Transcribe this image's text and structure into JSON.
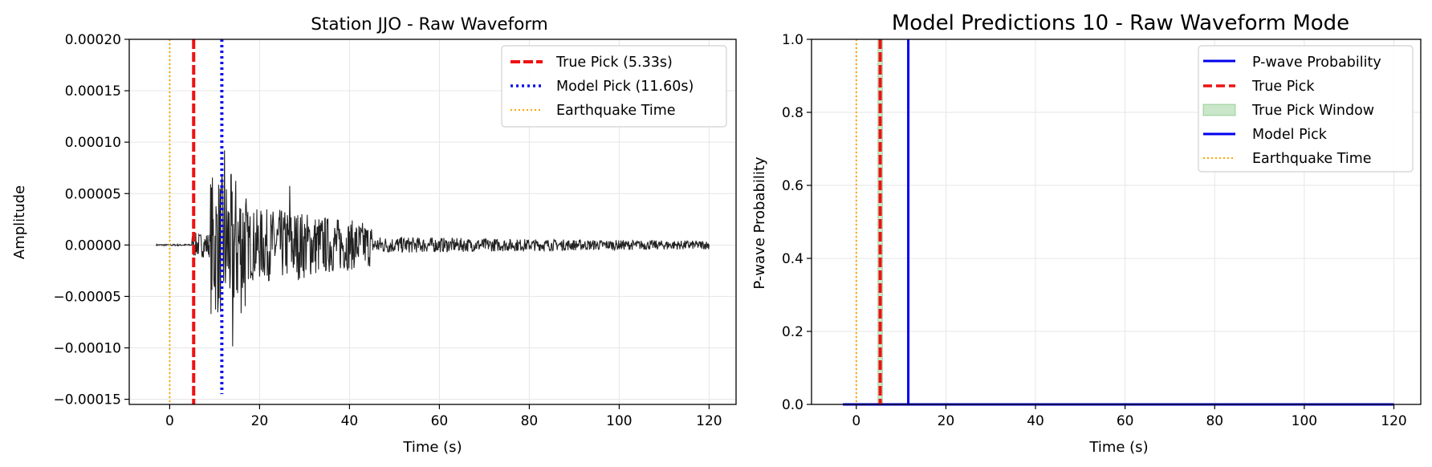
{
  "chart_data": [
    {
      "type": "line",
      "title": "Station JJO - Raw Waveform",
      "xlabel": "Time (s)",
      "ylabel": "Amplitude",
      "xlim": [
        -9,
        126
      ],
      "ylim": [
        -0.000155,
        0.0002
      ],
      "xticks": [
        0,
        20,
        40,
        60,
        80,
        100,
        120
      ],
      "xtick_labels": [
        "0",
        "20",
        "40",
        "60",
        "80",
        "100",
        "120"
      ],
      "yticks": [
        -0.00015,
        -0.0001,
        -5e-05,
        0,
        5e-05,
        0.0001,
        0.00015,
        0.0002
      ],
      "ytick_labels": [
        "−0.00015",
        "−0.00010",
        "−0.00005",
        "0.00000",
        "0.00005",
        "0.00010",
        "0.00015",
        "0.00020"
      ],
      "grid": true,
      "legend_position": "top-right",
      "series": [
        {
          "kind": "waveform",
          "color": "#222222",
          "x_range": [
            -3,
            120
          ]
        }
      ],
      "vlines": [
        {
          "name": "True Pick (5.33s)",
          "x": 5.33,
          "color": "#ee1111",
          "style": "dashed"
        },
        {
          "name": "Model Pick (11.60s)",
          "x": 11.6,
          "color": "#1111ee",
          "style": "dotted"
        },
        {
          "name": "Earthquake Time",
          "x": 0,
          "color": "#ffa500",
          "style": "dotted-thin"
        }
      ],
      "legend": [
        "True Pick (5.33s)",
        "Model Pick (11.60s)",
        "Earthquake Time"
      ]
    },
    {
      "type": "line",
      "title": "Model Predictions 10 - Raw Waveform Mode",
      "xlabel": "Time (s)",
      "ylabel": "P-wave Probability",
      "xlim": [
        -10,
        126
      ],
      "ylim": [
        0,
        1
      ],
      "xticks": [
        0,
        20,
        40,
        60,
        80,
        100,
        120
      ],
      "xtick_labels": [
        "0",
        "20",
        "40",
        "60",
        "80",
        "100",
        "120"
      ],
      "yticks": [
        0,
        0.2,
        0.4,
        0.6,
        0.8,
        1.0
      ],
      "ytick_labels": [
        "0.0",
        "0.2",
        "0.4",
        "0.6",
        "0.8",
        "1.0"
      ],
      "grid": true,
      "legend_position": "top-right",
      "series": [
        {
          "name": "P-wave Probability",
          "color": "#0000ee",
          "x": [
            -3,
            120
          ],
          "y": [
            0,
            0
          ]
        }
      ],
      "vspan": {
        "name": "True Pick Window",
        "x0": 4.83,
        "x1": 5.83,
        "color": "#2ca02c"
      },
      "vlines": [
        {
          "name": "True Pick",
          "x": 5.33,
          "color": "#ee1111",
          "style": "dashed"
        },
        {
          "name": "Model Pick",
          "x": 11.6,
          "color": "#0000ee",
          "style": "solid"
        },
        {
          "name": "Earthquake Time",
          "x": 0,
          "color": "#ffa500",
          "style": "dotted-thin"
        }
      ],
      "legend": [
        "P-wave Probability",
        "True Pick",
        "True Pick Window",
        "Model Pick",
        "Earthquake Time"
      ]
    }
  ]
}
